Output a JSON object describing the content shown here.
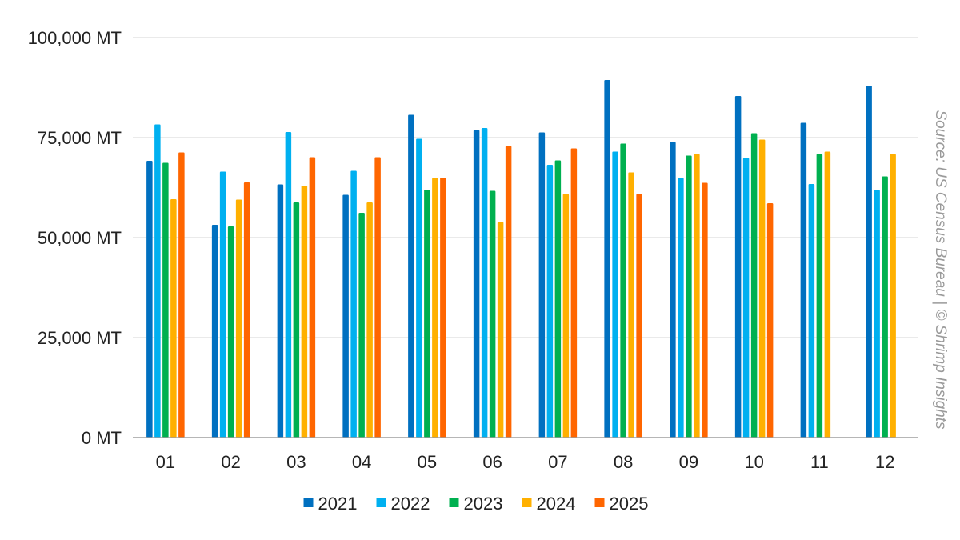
{
  "chart_data": {
    "type": "bar",
    "title": "",
    "xlabel": "",
    "ylabel": "",
    "categories": [
      "01",
      "02",
      "03",
      "04",
      "05",
      "06",
      "07",
      "08",
      "09",
      "10",
      "11",
      "12"
    ],
    "series": [
      {
        "name": "2021",
        "color": "#0070C0",
        "values": [
          69200,
          53200,
          63300,
          60700,
          80700,
          76900,
          76300,
          89400,
          73900,
          85400,
          78700,
          88000
        ]
      },
      {
        "name": "2022",
        "color": "#00B0F0",
        "values": [
          78300,
          66500,
          76400,
          66700,
          74700,
          77400,
          68200,
          71500,
          64900,
          69900,
          63400,
          61900
        ]
      },
      {
        "name": "2023",
        "color": "#00B050",
        "values": [
          68700,
          52800,
          58800,
          56200,
          62000,
          61700,
          69300,
          73500,
          70500,
          76100,
          70900,
          65300
        ]
      },
      {
        "name": "2024",
        "color": "#FFB000",
        "values": [
          59600,
          59500,
          63000,
          58800,
          64900,
          53900,
          60900,
          66300,
          70900,
          74500,
          71500,
          70900
        ]
      },
      {
        "name": "2025",
        "color": "#FF6600",
        "values": [
          71300,
          63800,
          70100,
          70100,
          65000,
          72900,
          72300,
          60900,
          63700,
          58600,
          null,
          null
        ]
      }
    ],
    "ylim": [
      0,
      100000
    ],
    "yticks": [
      "0 MT",
      "25,000 MT",
      "50,000 MT",
      "75,000 MT",
      "100,000 MT"
    ],
    "ytick_values": [
      0,
      25000,
      50000,
      75000,
      100000
    ],
    "grid": true,
    "legend_position": "bottom",
    "source_note": "Source: US Census Bureau | © Shrimp Insights"
  }
}
